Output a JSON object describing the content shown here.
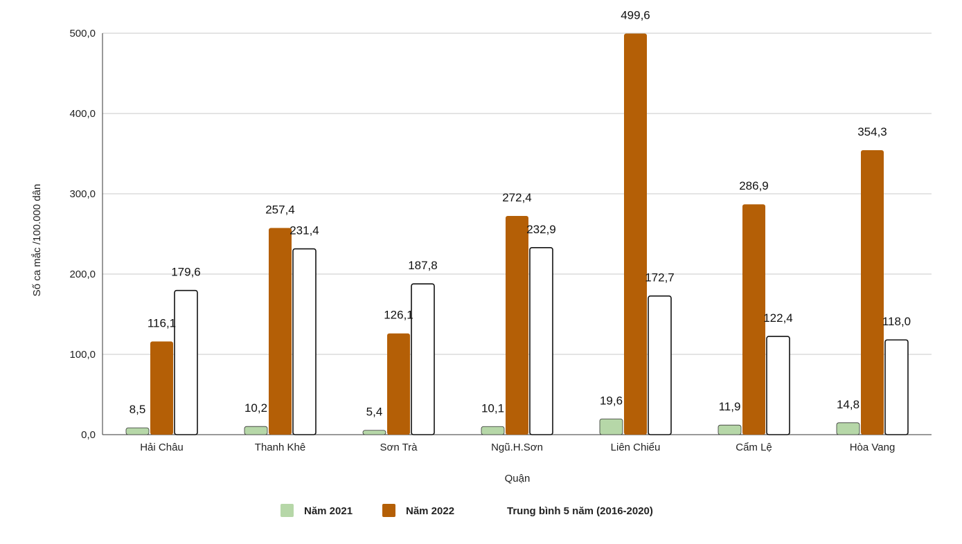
{
  "chart_data": {
    "type": "bar",
    "title": "",
    "xlabel": "Quận",
    "ylabel": "Số ca mắc /100.000 dân",
    "ylim": [
      0,
      500
    ],
    "yticks": [
      "0,0",
      "100,0",
      "200,0",
      "300,0",
      "400,0",
      "500,0"
    ],
    "ytick_values": [
      0,
      100,
      200,
      300,
      400,
      500
    ],
    "grid": true,
    "legend_position": "bottom",
    "categories": [
      "Hải Châu",
      "Thanh Khê",
      "Sơn Trà",
      "Ngũ.H.Sơn",
      "Liên Chiểu",
      "Cẩm Lệ",
      "Hòa Vang"
    ],
    "series": [
      {
        "name": "Năm 2021",
        "color": "#b6d7a8",
        "values": [
          8.5,
          10.2,
          5.4,
          10.1,
          19.6,
          11.9,
          14.8
        ],
        "labels": [
          "8,5",
          "10,2",
          "5,4",
          "10,1",
          "19,6",
          "11,9",
          "14,8"
        ]
      },
      {
        "name": "Năm 2022",
        "color": "#b45f06",
        "values": [
          116.1,
          257.4,
          126.1,
          272.4,
          499.6,
          286.9,
          354.3
        ],
        "labels": [
          "116,1",
          "257,4",
          "126,1",
          "272,4",
          "499,6",
          "286,9",
          "354,3"
        ]
      },
      {
        "name": "Trung bình 5 năm (2016-2020)",
        "color": "#ffffff",
        "values": [
          179.6,
          231.4,
          187.8,
          232.9,
          172.7,
          122.4,
          118.0
        ],
        "labels": [
          "179,6",
          "231,4",
          "187,8",
          "232,9",
          "172,7",
          "122,4",
          "118,0"
        ]
      }
    ]
  }
}
